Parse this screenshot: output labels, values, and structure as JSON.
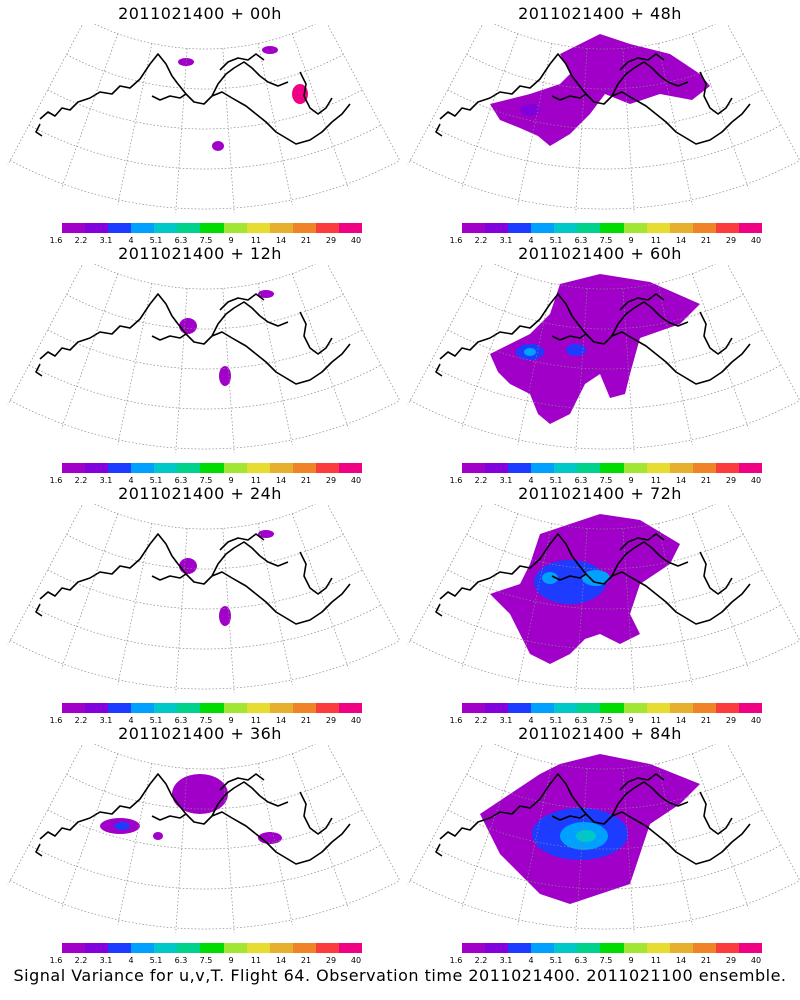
{
  "panels": [
    {
      "title": "2011021400 + 00h",
      "spread": 0
    },
    {
      "title": "2011021400 + 48h",
      "spread": 3
    },
    {
      "title": "2011021400 + 12h",
      "spread": 1
    },
    {
      "title": "2011021400 + 60h",
      "spread": 4
    },
    {
      "title": "2011021400 + 24h",
      "spread": 1
    },
    {
      "title": "2011021400 + 72h",
      "spread": 5
    },
    {
      "title": "2011021400 + 36h",
      "spread": 2
    },
    {
      "title": "2011021400 + 84h",
      "spread": 6
    }
  ],
  "colorbar": {
    "labels": [
      "1.6",
      "2.2",
      "3.1",
      "4",
      "5.1",
      "6.3",
      "7.5",
      "9",
      "11",
      "14",
      "21",
      "29",
      "40"
    ],
    "colors": [
      "#a000c8",
      "#8200dc",
      "#1e3cff",
      "#00a0ff",
      "#00c8c8",
      "#00d28c",
      "#00dc00",
      "#a0e632",
      "#e6dc32",
      "#e6af2d",
      "#f08228",
      "#fa3c3c",
      "#f00082"
    ]
  },
  "footer": "Signal Variance for u,v,T. Flight 64. Observation time 2011021400. 2011021100 ensemble."
}
